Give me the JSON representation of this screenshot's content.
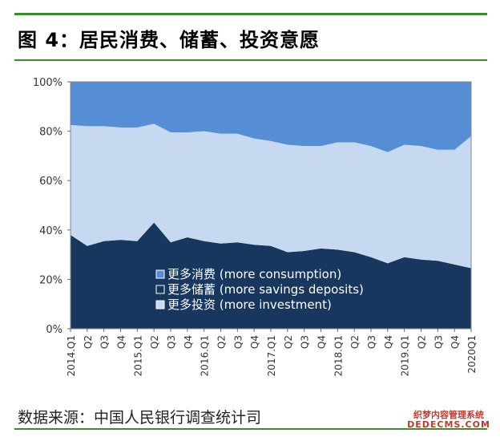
{
  "figure": {
    "title": "图 4：居民消费、储蓄、投资意愿",
    "source": "数据来源：中国人民银行调查统计司",
    "watermark_line1": "织梦内容管理系统",
    "watermark_line2": "DEDECMS.COM"
  },
  "colors": {
    "rule": "#3a8c2f",
    "savings": "#17375e",
    "investment": "#c6d9f0",
    "consumption": "#558ed5"
  },
  "chart_data": {
    "type": "area",
    "stacked": true,
    "percent": true,
    "title": "",
    "xlabel": "",
    "ylabel": "",
    "ylim": [
      0,
      100
    ],
    "yticks": [
      "0%",
      "20%",
      "40%",
      "60%",
      "80%",
      "100%"
    ],
    "categories": [
      "2014.Q1",
      "Q2",
      "Q3",
      "Q4",
      "2015.Q1",
      "Q2",
      "Q3",
      "Q4",
      "2016.Q1",
      "Q2",
      "Q3",
      "Q4",
      "2017.Q1",
      "Q2",
      "Q3",
      "Q4",
      "2018.Q1",
      "Q2",
      "Q3",
      "Q4",
      "2019.Q1",
      "Q2",
      "Q3",
      "Q4",
      "2020Q1"
    ],
    "x_tick_labels": [
      "2014.Q1",
      "Q2",
      "Q3",
      "Q4",
      "2015.Q1",
      "Q2",
      "Q3",
      "Q4",
      "2016.Q1",
      "Q2",
      "Q3",
      "Q4",
      "2017.Q1",
      "Q2",
      "Q3",
      "Q4",
      "2018.Q1",
      "Q2",
      "Q3",
      "Q4",
      "2019.Q1",
      "Q2",
      "Q3",
      "Q4",
      "2020Q1"
    ],
    "series": [
      {
        "name": "更多储蓄 (more savings deposits)",
        "values": [
          38,
          33.5,
          35.5,
          36,
          35.5,
          43,
          35,
          37,
          35.5,
          34.5,
          35,
          34,
          33.5,
          31,
          31.5,
          32.5,
          32,
          31,
          29,
          26.5,
          29,
          28,
          27.5,
          26,
          24.5
        ]
      },
      {
        "name": "更多投资 (more investment)",
        "values": [
          44.5,
          48.5,
          46.5,
          45.5,
          46,
          40,
          44.5,
          42.5,
          44.5,
          44.5,
          44,
          43,
          42.5,
          43.5,
          42.5,
          41.5,
          43.5,
          44.5,
          45,
          45,
          45.5,
          46,
          45,
          46.5,
          53.5
        ]
      },
      {
        "name": "更多消费 (more consumption)",
        "values": [
          17.5,
          18,
          18,
          18.5,
          18.5,
          17,
          20.5,
          20.5,
          20,
          21,
          21,
          23,
          24,
          25.5,
          26,
          26,
          24.5,
          24.5,
          26,
          28.5,
          25.5,
          26,
          27.5,
          27.5,
          22
        ]
      }
    ],
    "legend": [
      {
        "label": "更多消费 (more consumption)",
        "series": 2
      },
      {
        "label": "更多储蓄 (more savings deposits)",
        "series": 0
      },
      {
        "label": "更多投资 (more investment)",
        "series": 1
      }
    ],
    "legend_position": "inside-bottom-center",
    "grid": false
  }
}
